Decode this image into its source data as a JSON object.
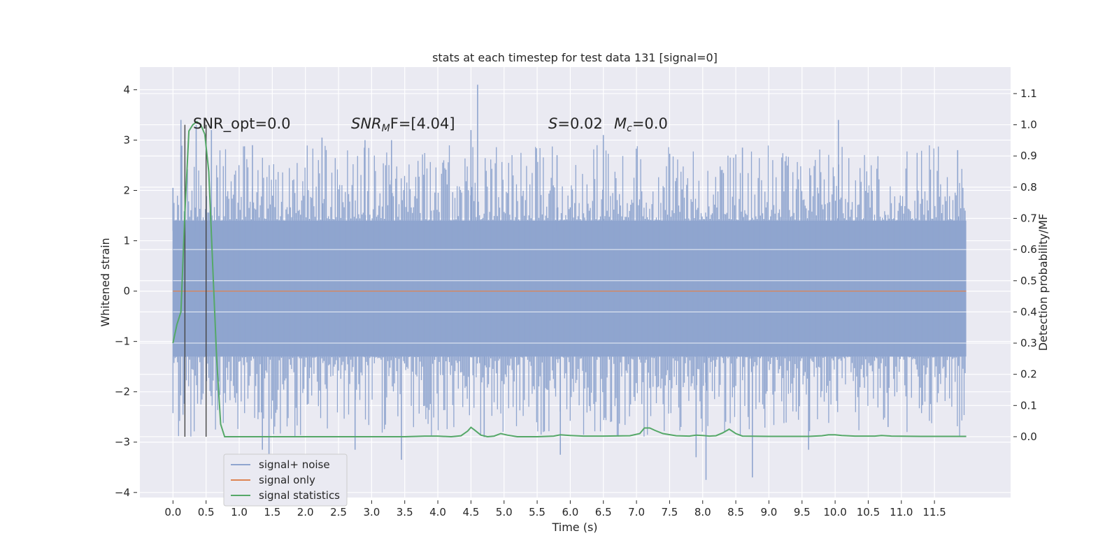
{
  "chart_data": {
    "type": "line",
    "title": "stats at each timestep for test data 131 [signal=0]",
    "xlabel": "Time (s)",
    "ylabel_left": "Whitened strain",
    "ylabel_right": "Detection probability/MF",
    "xlim": [
      -0.5,
      12.65
    ],
    "ylim_left": [
      -4.1,
      4.45
    ],
    "ylim_right": [
      -0.195,
      1.185
    ],
    "x_ticks": [
      "0.0",
      "0.5",
      "1.0",
      "1.5",
      "2.0",
      "2.5",
      "3.0",
      "3.5",
      "4.0",
      "4.5",
      "5.0",
      "5.5",
      "6.0",
      "6.5",
      "7.0",
      "7.5",
      "8.0",
      "8.5",
      "9.0",
      "9.5",
      "10.0",
      "10.5",
      "11.0",
      "11.5"
    ],
    "y_ticks_left": [
      "4",
      "3",
      "2",
      "1",
      "0",
      "−1",
      "−2",
      "−3",
      "−4"
    ],
    "y_ticks_right": [
      "1.1",
      "1.0",
      "0.9",
      "0.8",
      "0.7",
      "0.6",
      "0.5",
      "0.4",
      "0.3",
      "0.2",
      "0.1",
      "0.0"
    ],
    "grid": true,
    "legend_placement": "lower-left",
    "annotations": {
      "snr_opt": "SNR_opt=0.0",
      "snr_mf_a": "SNR",
      "snr_mf_sub": "M",
      "snr_mf_b": "F=[4.04]",
      "s_a": "S",
      "s_b": "=0.02",
      "mc_a": "M",
      "mc_sub": "c",
      "mc_b": "=0.0"
    },
    "vertical_markers": [
      0.18,
      0.5
    ],
    "series": [
      {
        "name": "signal+ noise",
        "color": "#8fa5cf",
        "x_range": [
          0.0,
          11.98
        ],
        "envelope": {
          "body": [
            -1.3,
            1.4
          ],
          "peaks": [
            {
              "x": 0.0,
              "v": 2.05
            },
            {
              "x": 0.12,
              "v": 3.4
            },
            {
              "x": 0.35,
              "v": 3.3
            },
            {
              "x": 0.58,
              "v": 3.2
            },
            {
              "x": 1.2,
              "v": 2.9
            },
            {
              "x": 2.25,
              "v": 3.05
            },
            {
              "x": 2.9,
              "v": 3.0
            },
            {
              "x": 3.3,
              "v": 3.0
            },
            {
              "x": 4.6,
              "v": 4.1
            },
            {
              "x": 4.5,
              "v": 3.2
            },
            {
              "x": 6.5,
              "v": 3.1
            },
            {
              "x": 10.05,
              "v": 3.4
            },
            {
              "x": 11.85,
              "v": 2.8
            },
            {
              "x": 5.8,
              "v": 2.7
            },
            {
              "x": 8.6,
              "v": 2.85
            }
          ],
          "troughs": [
            {
              "x": 1.35,
              "v": -3.15
            },
            {
              "x": 1.45,
              "v": -3.4
            },
            {
              "x": 3.45,
              "v": -3.35
            },
            {
              "x": 2.75,
              "v": -3.15
            },
            {
              "x": 5.85,
              "v": -3.25
            },
            {
              "x": 7.9,
              "v": -3.3
            },
            {
              "x": 8.05,
              "v": -3.75
            },
            {
              "x": 8.75,
              "v": -3.7
            },
            {
              "x": 9.6,
              "v": -3.15
            },
            {
              "x": 10.8,
              "v": -2.7
            },
            {
              "x": 4.7,
              "v": -2.9
            }
          ]
        }
      },
      {
        "name": "signal only",
        "color": "#dd8452",
        "x": [
          0.0,
          11.98
        ],
        "values": [
          0.0,
          0.0
        ]
      },
      {
        "name": "signal statistics",
        "axis": "right",
        "color": "#55a868",
        "x": [
          0.0,
          0.06,
          0.12,
          0.18,
          0.24,
          0.3,
          0.36,
          0.42,
          0.48,
          0.54,
          0.6,
          0.66,
          0.72,
          0.78,
          0.9,
          1.5,
          2.5,
          3.5,
          3.8,
          4.0,
          4.2,
          4.35,
          4.45,
          4.5,
          4.55,
          4.65,
          4.75,
          4.85,
          4.95,
          5.05,
          5.2,
          5.5,
          5.75,
          5.85,
          6.0,
          6.2,
          6.5,
          6.9,
          7.05,
          7.12,
          7.2,
          7.28,
          7.4,
          7.6,
          7.8,
          7.9,
          8.0,
          8.1,
          8.2,
          8.3,
          8.4,
          8.5,
          8.6,
          9.0,
          9.6,
          9.8,
          9.9,
          10.0,
          10.1,
          10.3,
          10.6,
          10.7,
          10.85,
          11.3,
          11.7,
          11.98
        ],
        "values": [
          0.3,
          0.36,
          0.4,
          0.72,
          0.98,
          1.0,
          1.01,
          1.0,
          0.97,
          0.85,
          0.55,
          0.25,
          0.04,
          0.0,
          0.0,
          0.0,
          0.0,
          0.0,
          0.002,
          0.002,
          0.0,
          0.003,
          0.018,
          0.03,
          0.022,
          0.005,
          0.0,
          0.002,
          0.01,
          0.005,
          0.0,
          0.0,
          0.002,
          0.006,
          0.004,
          0.002,
          0.002,
          0.003,
          0.01,
          0.028,
          0.028,
          0.02,
          0.01,
          0.003,
          0.002,
          0.005,
          0.004,
          0.002,
          0.003,
          0.012,
          0.024,
          0.01,
          0.002,
          0.001,
          0.001,
          0.003,
          0.006,
          0.006,
          0.004,
          0.002,
          0.002,
          0.004,
          0.002,
          0.001,
          0.001,
          0.001
        ]
      }
    ]
  }
}
